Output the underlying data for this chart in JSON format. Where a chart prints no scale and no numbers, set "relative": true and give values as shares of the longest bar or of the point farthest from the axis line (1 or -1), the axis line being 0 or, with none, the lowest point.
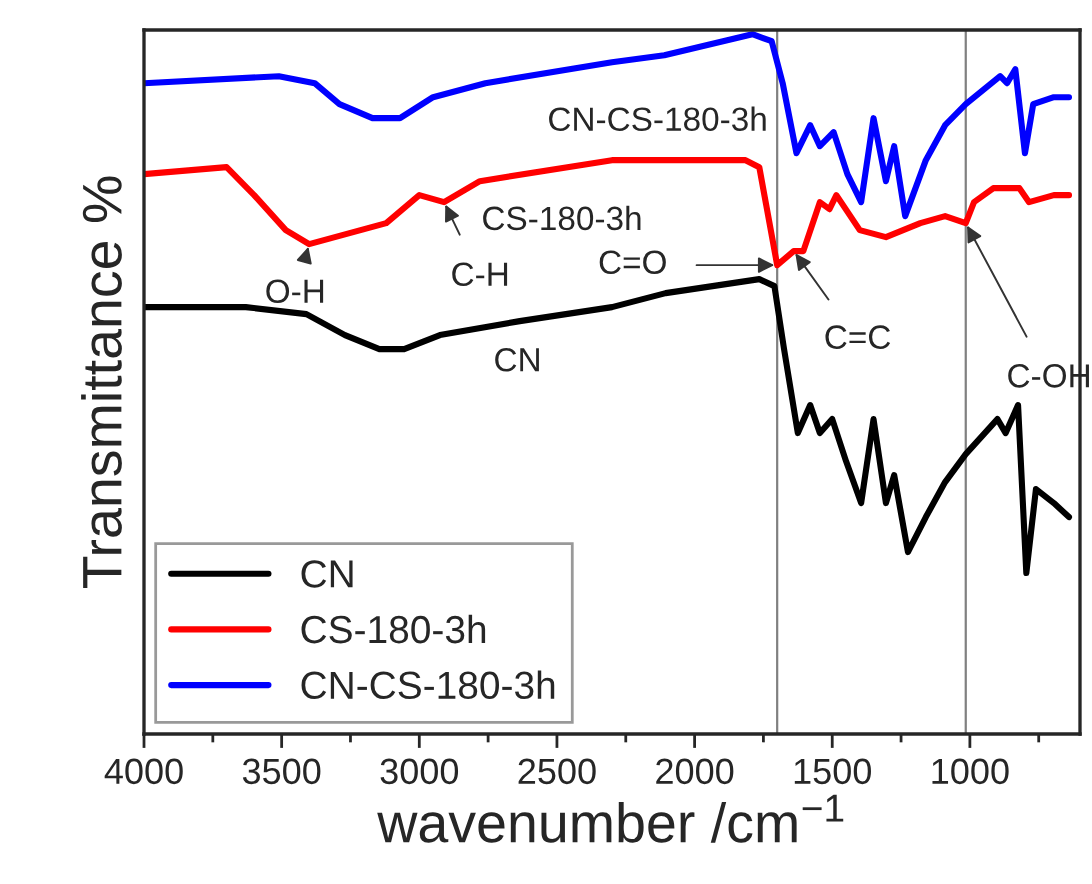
{
  "chart_data": {
    "type": "line",
    "relative": true,
    "xlabel": "wavenumber /cm$^{−1}$",
    "ylabel": "Transmittance %",
    "xlim": [
      4000,
      600
    ],
    "xticks": [
      4000,
      3500,
      3000,
      2500,
      2000,
      1500,
      1000
    ],
    "series": [
      {
        "name": "CN",
        "color": "#000000",
        "x": [
          4000,
          3630,
          3410,
          3270,
          3145,
          3055,
          2925,
          2635,
          2300,
          2105,
          1765,
          1710,
          1675,
          1625,
          1580,
          1545,
          1500,
          1450,
          1395,
          1350,
          1305,
          1275,
          1225,
          1160,
          1090,
          1015,
          900,
          870,
          825,
          795,
          760,
          695,
          640
        ],
        "values": [
          0.61,
          0.61,
          0.6,
          0.57,
          0.55,
          0.55,
          0.57,
          0.59,
          0.61,
          0.63,
          0.65,
          0.64,
          0.55,
          0.43,
          0.47,
          0.43,
          0.45,
          0.39,
          0.33,
          0.45,
          0.33,
          0.37,
          0.26,
          0.31,
          0.36,
          0.4,
          0.45,
          0.43,
          0.47,
          0.23,
          0.35,
          0.33,
          0.31
        ]
      },
      {
        "name": "CS-180-3h",
        "color": "#ff0000",
        "x": [
          4000,
          3700,
          3600,
          3485,
          3400,
          3120,
          3000,
          2910,
          2780,
          2300,
          1815,
          1765,
          1700,
          1640,
          1605,
          1545,
          1510,
          1485,
          1400,
          1305,
          1180,
          1090,
          1015,
          985,
          915,
          820,
          785,
          695,
          640
        ],
        "values": [
          0.8,
          0.81,
          0.77,
          0.72,
          0.7,
          0.73,
          0.77,
          0.76,
          0.79,
          0.82,
          0.82,
          0.81,
          0.67,
          0.69,
          0.69,
          0.76,
          0.75,
          0.77,
          0.72,
          0.71,
          0.73,
          0.74,
          0.73,
          0.76,
          0.78,
          0.78,
          0.76,
          0.77,
          0.77
        ]
      },
      {
        "name": "CN-CS-180-3h",
        "color": "#0000ff",
        "x": [
          4000,
          3510,
          3380,
          3290,
          3170,
          3070,
          2950,
          2760,
          2300,
          2110,
          1790,
          1720,
          1680,
          1630,
          1580,
          1545,
          1495,
          1445,
          1395,
          1350,
          1305,
          1275,
          1235,
          1160,
          1090,
          1015,
          890,
          865,
          835,
          800,
          770,
          695,
          640
        ],
        "values": [
          0.93,
          0.94,
          0.93,
          0.9,
          0.88,
          0.88,
          0.91,
          0.93,
          0.96,
          0.97,
          1.0,
          0.99,
          0.93,
          0.83,
          0.87,
          0.84,
          0.86,
          0.8,
          0.76,
          0.88,
          0.79,
          0.84,
          0.74,
          0.82,
          0.87,
          0.9,
          0.94,
          0.93,
          0.95,
          0.83,
          0.9,
          0.91,
          0.91
        ]
      }
    ],
    "ref_lines": [
      {
        "axis": "x",
        "value": 1700,
        "color": "#808080"
      },
      {
        "axis": "x",
        "value": 1015,
        "color": "#808080"
      }
    ],
    "annotations": [
      {
        "text": "CN-CS-180-3h",
        "x": 2760,
        "y": 0.93
      },
      {
        "text": "CS-180-3h",
        "x": 2300,
        "y": 0.82
      },
      {
        "text": "CN",
        "x": 2300,
        "y": 0.61
      },
      {
        "text": "O-H",
        "x": 3400,
        "y": 0.7
      },
      {
        "text": "C-H",
        "x": 2910,
        "y": 0.76
      },
      {
        "text": "C=O",
        "x": 1700,
        "y": 0.67
      },
      {
        "text": "C=C",
        "x": 1640,
        "y": 0.69
      },
      {
        "text": "C-OH",
        "x": 1015,
        "y": 0.73
      }
    ],
    "legend": "bottom left",
    "grid": false,
    "marker": "none",
    "line_style": "solid"
  }
}
